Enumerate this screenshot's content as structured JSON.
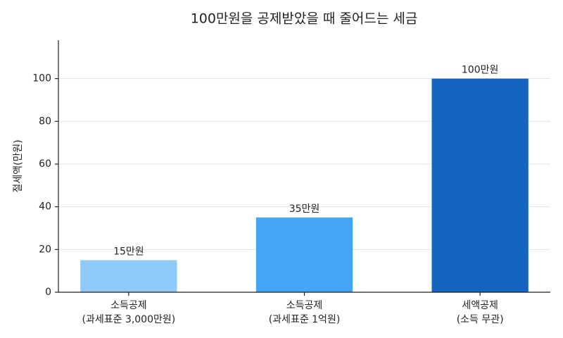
{
  "chart_data": {
    "type": "bar",
    "title": "100만원을 공제받았을 때 줄어드는 세금",
    "ylabel": "절세액(만원)",
    "categories": [
      [
        "소득공제",
        "(과세표준 3,000만원)"
      ],
      [
        "소득공제",
        "(과세표준 1억원)"
      ],
      [
        "세액공제",
        "(소득 무관)"
      ]
    ],
    "values": [
      15,
      35,
      100
    ],
    "value_labels": [
      "15만원",
      "35만원",
      "100만원"
    ],
    "colors": [
      "#90caf9",
      "#42a5f5",
      "#1565c0"
    ],
    "ylim": [
      0,
      118
    ],
    "yticks": [
      0,
      20,
      40,
      60,
      80,
      100
    ],
    "grid": true
  }
}
